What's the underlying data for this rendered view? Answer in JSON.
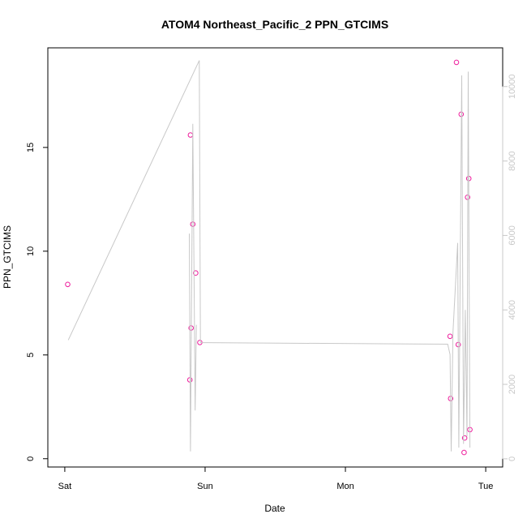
{
  "chart_data": {
    "type": "scatter",
    "title": "ATOM4 Northeast_Pacific_2 PPN_GTCIMS",
    "xlabel": "Date",
    "ylabel": "PPN_GTCIMS",
    "x_ticks": [
      "Sat",
      "Sun",
      "Mon",
      "Tue"
    ],
    "x_tick_times_hours": [
      0,
      24,
      48,
      72
    ],
    "xlim_hours": [
      -2.9,
      74.9
    ],
    "ylim": [
      -0.4,
      19.8
    ],
    "y_ticks": [
      0,
      5,
      10,
      15
    ],
    "y2lim": [
      -220,
      11040
    ],
    "y2_ticks": [
      0,
      2000,
      4000,
      6000,
      8000,
      10000
    ],
    "grid": false,
    "series": [
      {
        "kind": "points",
        "axis": "left",
        "color": "#ee1c9c",
        "points": [
          {
            "t": 0.5,
            "y": 8.4
          },
          {
            "t": 21.4,
            "y": 3.8
          },
          {
            "t": 21.5,
            "y": 15.6
          },
          {
            "t": 21.6,
            "y": 6.3
          },
          {
            "t": 21.9,
            "y": 11.3
          },
          {
            "t": 22.4,
            "y": 8.95
          },
          {
            "t": 23.1,
            "y": 5.6
          },
          {
            "t": 65.9,
            "y": 5.9
          },
          {
            "t": 66.0,
            "y": 2.9
          },
          {
            "t": 67.0,
            "y": 19.1
          },
          {
            "t": 67.3,
            "y": 5.5
          },
          {
            "t": 67.8,
            "y": 16.6
          },
          {
            "t": 68.3,
            "y": 0.3
          },
          {
            "t": 68.4,
            "y": 1.0
          },
          {
            "t": 68.9,
            "y": 12.6
          },
          {
            "t": 69.1,
            "y": 13.5
          },
          {
            "t": 69.3,
            "y": 1.4
          }
        ]
      },
      {
        "kind": "line",
        "axis": "right",
        "color": "#c8c8c8",
        "points": [
          {
            "t": 0.6,
            "y": 3190
          },
          {
            "t": 23.0,
            "y": 10700
          },
          {
            "t": 23.2,
            "y": 3120
          },
          {
            "t": 65.5,
            "y": 3080
          },
          {
            "t": 65.9,
            "y": 2800
          },
          {
            "t": 66.1,
            "y": 200
          },
          {
            "t": 66.4,
            "y": 3400
          },
          {
            "t": 67.2,
            "y": 5800
          },
          {
            "t": 67.4,
            "y": 300
          },
          {
            "t": 67.9,
            "y": 10300
          },
          {
            "t": 68.2,
            "y": 400
          },
          {
            "t": 68.5,
            "y": 4000
          },
          {
            "t": 68.8,
            "y": 600
          },
          {
            "t": 69.0,
            "y": 10400
          },
          {
            "t": 69.3,
            "y": 300
          }
        ]
      },
      {
        "kind": "line",
        "axis": "right",
        "color": "#c8c8c8",
        "points": [
          {
            "t": 21.3,
            "y": 6050
          },
          {
            "t": 21.5,
            "y": 200
          },
          {
            "t": 21.9,
            "y": 9000
          },
          {
            "t": 22.3,
            "y": 1300
          },
          {
            "t": 22.5,
            "y": 3600
          }
        ]
      }
    ]
  }
}
